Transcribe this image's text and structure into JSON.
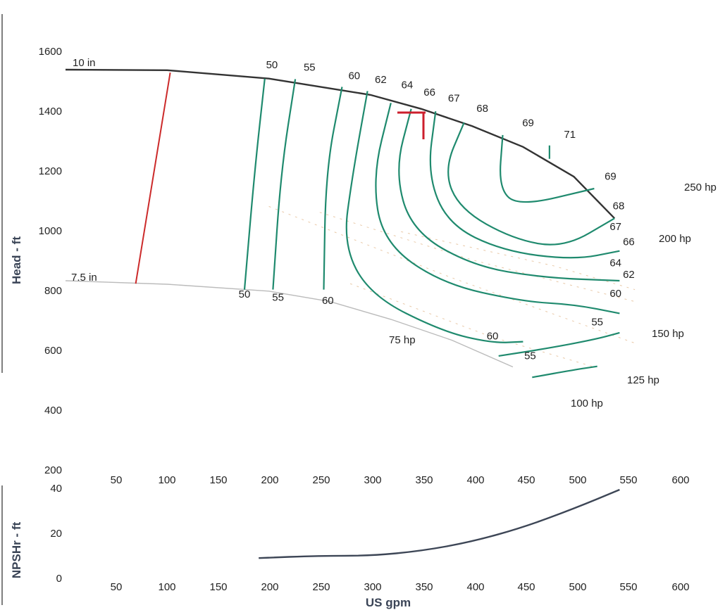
{
  "chart_data": [
    {
      "type": "line",
      "title": "",
      "ylabel": "Head - ft",
      "ylim": [
        200,
        1600
      ],
      "y_ticks": [
        "1600",
        "1400",
        "1200",
        "1000",
        "800",
        "600",
        "400",
        "200"
      ],
      "x_ticks": [
        "50",
        "100",
        "150",
        "200",
        "250",
        "300",
        "350",
        "400",
        "450",
        "500",
        "550",
        "600"
      ],
      "impeller_curves": [
        {
          "name": "10 in",
          "color": "#333333",
          "points": [
            [
              0,
              1540
            ],
            [
              100,
              1538
            ],
            [
              200,
              1510
            ],
            [
              300,
              1455
            ],
            [
              350,
              1408
            ],
            [
              400,
              1350
            ],
            [
              450,
              1280
            ],
            [
              500,
              1180
            ],
            [
              540,
              1040
            ]
          ]
        },
        {
          "name": "7.5 in",
          "color": "#bbbbbb",
          "points": [
            [
              0,
              830
            ],
            [
              100,
              818
            ],
            [
              200,
              795
            ],
            [
              260,
              760
            ],
            [
              320,
              700
            ],
            [
              380,
              630
            ],
            [
              440,
              540
            ]
          ]
        }
      ],
      "efficiency_labels": [
        {
          "text": "50",
          "x": 203,
          "y": 1545
        },
        {
          "text": "55",
          "x": 240,
          "y": 1537
        },
        {
          "text": "60",
          "x": 284,
          "y": 1508
        },
        {
          "text": "62",
          "x": 310,
          "y": 1495
        },
        {
          "text": "64",
          "x": 336,
          "y": 1477
        },
        {
          "text": "66",
          "x": 358,
          "y": 1452
        },
        {
          "text": "67",
          "x": 382,
          "y": 1432
        },
        {
          "text": "68",
          "x": 410,
          "y": 1398
        },
        {
          "text": "69",
          "x": 455,
          "y": 1350
        },
        {
          "text": "71",
          "x": 496,
          "y": 1310
        },
        {
          "text": "69",
          "x": 536,
          "y": 1170
        },
        {
          "text": "68",
          "x": 544,
          "y": 1070
        },
        {
          "text": "67",
          "x": 541,
          "y": 1000
        },
        {
          "text": "66",
          "x": 554,
          "y": 950
        },
        {
          "text": "64",
          "x": 541,
          "y": 878
        },
        {
          "text": "62",
          "x": 554,
          "y": 840
        },
        {
          "text": "60",
          "x": 541,
          "y": 775
        },
        {
          "text": "55",
          "x": 523,
          "y": 680
        },
        {
          "text": "60",
          "x": 420,
          "y": 632
        },
        {
          "text": "55",
          "x": 457,
          "y": 566
        },
        {
          "text": "50",
          "x": 176,
          "y": 773
        },
        {
          "text": "55",
          "x": 209,
          "y": 763
        },
        {
          "text": "60",
          "x": 258,
          "y": 752
        }
      ],
      "iso_efficiency": [
        {
          "name": "50",
          "points": [
            [
              196,
              1510
            ],
            [
              186,
              1200
            ],
            [
              176,
              800
            ]
          ]
        },
        {
          "name": "55",
          "points": [
            [
              226,
              1508
            ],
            [
              212,
              1200
            ],
            [
              204,
              800
            ]
          ]
        },
        {
          "name": "60",
          "points": [
            [
              272,
              1482
            ],
            [
              256,
              1200
            ],
            [
              254,
              800
            ]
          ]
        },
        {
          "name": "62",
          "points": [
            [
              297,
              1468
            ],
            [
              282,
              1180
            ],
            [
              273,
              950
            ],
            [
              300,
              780
            ],
            [
              370,
              660
            ],
            [
              420,
              620
            ],
            [
              450,
              625
            ]
          ]
        },
        {
          "name": "64",
          "points": [
            [
              320,
              1428
            ],
            [
              302,
              1180
            ],
            [
              312,
              960
            ],
            [
              370,
              820
            ],
            [
              450,
              760
            ],
            [
              500,
              750
            ],
            [
              545,
              720
            ]
          ]
        },
        {
          "name": "66",
          "points": [
            [
              340,
              1408
            ],
            [
              324,
              1200
            ],
            [
              340,
              1000
            ],
            [
              400,
              880
            ],
            [
              470,
              840
            ],
            [
              545,
              830
            ]
          ]
        },
        {
          "name": "67",
          "points": [
            [
              364,
              1400
            ],
            [
              356,
              1190
            ],
            [
              376,
              1020
            ],
            [
              430,
              930
            ],
            [
              500,
              900
            ],
            [
              545,
              930
            ]
          ]
        },
        {
          "name": "68",
          "points": [
            [
              392,
              1362
            ],
            [
              372,
              1200
            ],
            [
              388,
              1070
            ],
            [
              440,
              970
            ],
            [
              490,
              940
            ],
            [
              540,
              1040
            ]
          ]
        },
        {
          "name": "69",
          "points": [
            [
              430,
              1320
            ],
            [
              426,
              1140
            ],
            [
              446,
              1080
            ],
            [
              520,
              1140
            ]
          ]
        },
        {
          "name": "71",
          "points": [
            [
              476,
              1285
            ],
            [
              476,
              1240
            ]
          ]
        },
        {
          "name": "60",
          "points": [
            [
              426,
              577
            ],
            [
              470,
              600
            ],
            [
              520,
              632
            ],
            [
              545,
              655
            ]
          ]
        },
        {
          "name": "55",
          "points": [
            [
              459,
              505
            ],
            [
              500,
              530
            ],
            [
              523,
              542
            ]
          ]
        }
      ],
      "power_lines": [
        {
          "name": "250 hp",
          "label_y": 1165
        },
        {
          "name": "200 hp",
          "label_y": 1005
        },
        {
          "name": "150 hp",
          "label_y": 660
        },
        {
          "name": "125 hp",
          "label_y": 525
        },
        {
          "name": "100 hp",
          "label_y": 440
        },
        {
          "name": "75 hp",
          "label_y": 640
        }
      ],
      "duty_point": {
        "x": 350,
        "y": 1400,
        "color": "#cc1f2d"
      },
      "min_flow_line": {
        "color": "#cc2a2a",
        "points": [
          [
            103,
            1530
          ],
          [
            69,
            820
          ]
        ]
      }
    },
    {
      "type": "line",
      "title": "",
      "xlabel": "US gpm",
      "ylabel": "NPSHr - ft",
      "ylim": [
        0,
        40
      ],
      "y_ticks": [
        "40",
        "20",
        "0"
      ],
      "x_ticks": [
        "50",
        "100",
        "150",
        "200",
        "250",
        "300",
        "350",
        "400",
        "450",
        "500",
        "550",
        "600"
      ],
      "series": [
        {
          "name": "",
          "color": "#3d4656",
          "x": [
            190,
            250,
            300,
            350,
            400,
            450,
            500,
            545
          ],
          "y": [
            8,
            9,
            9,
            11,
            15,
            21,
            29,
            37
          ]
        }
      ]
    }
  ]
}
